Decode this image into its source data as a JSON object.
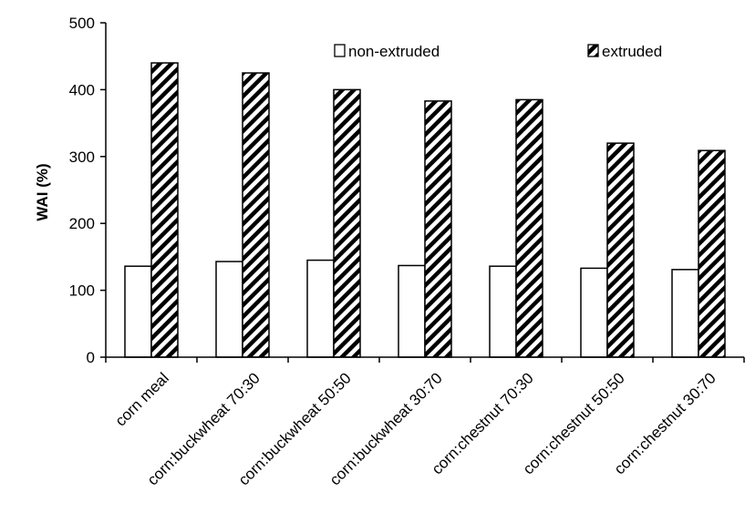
{
  "chart_data": {
    "type": "bar",
    "title": "",
    "xlabel": "",
    "ylabel": "WAI (%)",
    "ylim": [
      0,
      500
    ],
    "yticks": [
      0,
      100,
      200,
      300,
      400,
      500
    ],
    "grid": false,
    "legend_position": "top-right",
    "categories": [
      "corn meal",
      "corn:buckwheat 70:30",
      "corn:buckwheat 50:50",
      "corn:buckwheat 30:70",
      "corn:chestnut 70:30",
      "corn:chestnut 50:50",
      "corn:chestnut 30:70"
    ],
    "series": [
      {
        "name": "non-extruded",
        "values": [
          136,
          143,
          145,
          137,
          136,
          133,
          131
        ],
        "fill": "white"
      },
      {
        "name": "extruded",
        "values": [
          440,
          425,
          400,
          383,
          385,
          320,
          309
        ],
        "fill": "diagonal-hatch"
      }
    ]
  },
  "colors": {
    "stroke": "#000000",
    "background": "#ffffff"
  }
}
